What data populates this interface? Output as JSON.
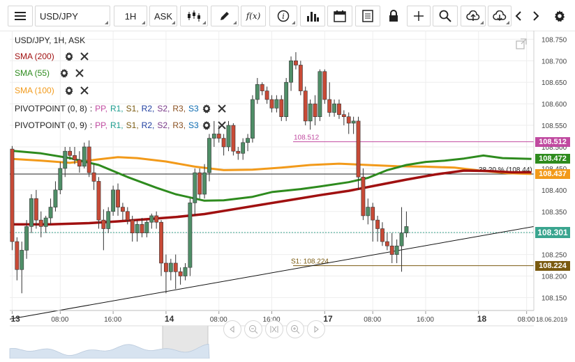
{
  "toolbar": {
    "symbol": "USD/JPY",
    "timeframe": "1H",
    "price_type": "ASK",
    "fx_label": "f(x)"
  },
  "legend": {
    "header": "USD/JPY, 1H, ASK",
    "sma200": "SMA (200)",
    "sma55": "SMA (55)",
    "sma100": "SMA (100)",
    "pivot1_name": "PIVOTPOINT (0, 8)",
    "pivot2_name": "PIVOTPOINT (0, 9)",
    "pivot_sep": ":",
    "pivot_items": [
      "PP,",
      "R1,",
      "S1,",
      "R2,",
      "S2,",
      "R3,",
      "S3"
    ],
    "colors": {
      "sma200": "#a01010",
      "sma55": "#2e8b1e",
      "sma100": "#f29a1a",
      "pivot": [
        "#c04aa0",
        "#1b9c8e",
        "#7a5a10",
        "#1e3ea0",
        "#7a3a8a",
        "#8a5020",
        "#0a6ab0"
      ]
    }
  },
  "chart_data": {
    "type": "candlestick",
    "symbol": "USD/JPY",
    "timeframe": "1H",
    "ylim": [
      108.12,
      108.77
    ],
    "y_ticks": [
      "108.750",
      "108.700",
      "108.650",
      "108.600",
      "108.550",
      "108.500",
      "108.450",
      "108.400",
      "108.350",
      "108.300",
      "108.250",
      "108.200",
      "108.150"
    ],
    "x_ticks": [
      {
        "label": "13",
        "bold": true,
        "i": 0
      },
      {
        "label": "08:00",
        "bold": false,
        "i": 10
      },
      {
        "label": "16:00",
        "bold": false,
        "i": 21
      },
      {
        "label": "14",
        "bold": true,
        "i": 32
      },
      {
        "label": "08:00",
        "bold": false,
        "i": 43
      },
      {
        "label": "16:00",
        "bold": false,
        "i": 54
      },
      {
        "label": "17",
        "bold": true,
        "i": 65
      },
      {
        "label": "08:00",
        "bold": false,
        "i": 75
      },
      {
        "label": "16:00",
        "bold": false,
        "i": 86
      },
      {
        "label": "18",
        "bold": true,
        "i": 97
      },
      {
        "label": "08:00",
        "bold": false,
        "i": 107
      }
    ],
    "date_label": "18.06.2019",
    "candles": [
      [
        108.495,
        108.502,
        108.26,
        108.28
      ],
      [
        108.28,
        108.29,
        108.19,
        108.215
      ],
      [
        108.215,
        108.28,
        108.16,
        108.26
      ],
      [
        108.26,
        108.33,
        108.24,
        108.315
      ],
      [
        108.315,
        108.39,
        108.3,
        108.38
      ],
      [
        108.38,
        108.4,
        108.31,
        108.33
      ],
      [
        108.33,
        108.35,
        108.29,
        108.315
      ],
      [
        108.315,
        108.34,
        108.3,
        108.335
      ],
      [
        108.335,
        108.38,
        108.32,
        108.36
      ],
      [
        108.36,
        108.42,
        108.35,
        108.4
      ],
      [
        108.4,
        108.465,
        108.39,
        108.45
      ],
      [
        108.45,
        108.5,
        108.43,
        108.49
      ],
      [
        108.49,
        108.5,
        108.47,
        108.48
      ],
      [
        108.48,
        108.5,
        108.46,
        108.47
      ],
      [
        108.47,
        108.49,
        108.44,
        108.455
      ],
      [
        108.455,
        108.51,
        108.45,
        108.5
      ],
      [
        108.5,
        108.515,
        108.43,
        108.44
      ],
      [
        108.44,
        108.46,
        108.4,
        108.42
      ],
      [
        108.42,
        108.43,
        108.31,
        108.33
      ],
      [
        108.33,
        108.355,
        108.26,
        108.31
      ],
      [
        108.31,
        108.36,
        108.3,
        108.35
      ],
      [
        108.35,
        108.41,
        108.34,
        108.4
      ],
      [
        108.4,
        108.415,
        108.34,
        108.36
      ],
      [
        108.36,
        108.37,
        108.33,
        108.35
      ],
      [
        108.35,
        108.36,
        108.32,
        108.33
      ],
      [
        108.33,
        108.34,
        108.28,
        108.3
      ],
      [
        108.3,
        108.33,
        108.28,
        108.32
      ],
      [
        108.32,
        108.335,
        108.29,
        108.3
      ],
      [
        108.3,
        108.33,
        108.29,
        108.325
      ],
      [
        108.325,
        108.345,
        108.31,
        108.34
      ],
      [
        108.34,
        108.35,
        108.31,
        108.325
      ],
      [
        108.325,
        108.33,
        108.2,
        108.23
      ],
      [
        108.23,
        108.25,
        108.16,
        108.21
      ],
      [
        108.21,
        108.24,
        108.19,
        108.23
      ],
      [
        108.23,
        108.25,
        108.17,
        108.21
      ],
      [
        108.21,
        108.22,
        108.18,
        108.2
      ],
      [
        108.2,
        108.23,
        108.19,
        108.22
      ],
      [
        108.22,
        108.38,
        108.2,
        108.37
      ],
      [
        108.37,
        108.45,
        108.34,
        108.44
      ],
      [
        108.44,
        108.45,
        108.38,
        108.39
      ],
      [
        108.39,
        108.46,
        108.38,
        108.44
      ],
      [
        108.44,
        108.53,
        108.42,
        108.52
      ],
      [
        108.52,
        108.56,
        108.5,
        108.53
      ],
      [
        108.53,
        108.55,
        108.51,
        108.52
      ],
      [
        108.52,
        108.53,
        108.48,
        108.5
      ],
      [
        108.5,
        108.56,
        108.49,
        108.55
      ],
      [
        108.55,
        108.555,
        108.48,
        108.49
      ],
      [
        108.49,
        108.5,
        108.47,
        108.485
      ],
      [
        108.485,
        108.52,
        108.47,
        108.51
      ],
      [
        108.51,
        108.53,
        108.49,
        108.52
      ],
      [
        108.52,
        108.62,
        108.51,
        108.61
      ],
      [
        108.61,
        108.66,
        108.6,
        108.645
      ],
      [
        108.645,
        108.65,
        108.62,
        108.63
      ],
      [
        108.63,
        108.64,
        108.6,
        108.61
      ],
      [
        108.61,
        108.62,
        108.58,
        108.59
      ],
      [
        108.59,
        108.62,
        108.58,
        108.61
      ],
      [
        108.61,
        108.62,
        108.56,
        108.57
      ],
      [
        108.57,
        108.66,
        108.56,
        108.65
      ],
      [
        108.65,
        108.71,
        108.63,
        108.7
      ],
      [
        108.7,
        108.72,
        108.68,
        108.69
      ],
      [
        108.69,
        108.7,
        108.62,
        108.63
      ],
      [
        108.63,
        108.64,
        108.55,
        108.56
      ],
      [
        108.56,
        108.61,
        108.54,
        108.6
      ],
      [
        108.6,
        108.62,
        108.55,
        108.57
      ],
      [
        108.57,
        108.68,
        108.56,
        108.675
      ],
      [
        108.675,
        108.68,
        108.6,
        108.61
      ],
      [
        108.61,
        108.65,
        108.57,
        108.58
      ],
      [
        108.58,
        108.61,
        108.57,
        108.6
      ],
      [
        108.6,
        108.61,
        108.565,
        108.575
      ],
      [
        108.575,
        108.585,
        108.55,
        108.57
      ],
      [
        108.57,
        108.58,
        108.53,
        108.555
      ],
      [
        108.555,
        108.57,
        108.53,
        108.56
      ],
      [
        108.56,
        108.57,
        108.4,
        108.43
      ],
      [
        108.43,
        108.45,
        108.33,
        108.34
      ],
      [
        108.34,
        108.38,
        108.32,
        108.36
      ],
      [
        108.36,
        108.37,
        108.28,
        108.33
      ],
      [
        108.33,
        108.34,
        108.28,
        108.31
      ],
      [
        108.31,
        108.325,
        108.27,
        108.28
      ],
      [
        108.28,
        108.3,
        108.26,
        108.27
      ],
      [
        108.27,
        108.3,
        108.23,
        108.25
      ],
      [
        108.25,
        108.285,
        108.23,
        108.27
      ],
      [
        108.27,
        108.36,
        108.21,
        108.3
      ],
      [
        108.3,
        108.35,
        108.29,
        108.315
      ]
    ],
    "sma55": [
      [
        0,
        108.491
      ],
      [
        6,
        108.485
      ],
      [
        12,
        108.474
      ],
      [
        18,
        108.458
      ],
      [
        24,
        108.43
      ],
      [
        30,
        108.405
      ],
      [
        34,
        108.39
      ],
      [
        40,
        108.375
      ],
      [
        44,
        108.376
      ],
      [
        50,
        108.384
      ],
      [
        54,
        108.395
      ],
      [
        60,
        108.402
      ],
      [
        64,
        108.408
      ],
      [
        70,
        108.418
      ],
      [
        74,
        108.428
      ],
      [
        78,
        108.446
      ],
      [
        82,
        108.458
      ],
      [
        86,
        108.465
      ],
      [
        90,
        108.468
      ],
      [
        94,
        108.473
      ],
      [
        98,
        108.48
      ],
      [
        102,
        108.474
      ],
      [
        108,
        108.472
      ]
    ],
    "sma100": [
      [
        0,
        108.472
      ],
      [
        6,
        108.468
      ],
      [
        12,
        108.463
      ],
      [
        18,
        108.471
      ],
      [
        22,
        108.476
      ],
      [
        26,
        108.474
      ],
      [
        32,
        108.466
      ],
      [
        38,
        108.454
      ],
      [
        44,
        108.446
      ],
      [
        50,
        108.447
      ],
      [
        56,
        108.452
      ],
      [
        62,
        108.458
      ],
      [
        68,
        108.461
      ],
      [
        74,
        108.458
      ],
      [
        80,
        108.455
      ],
      [
        86,
        108.454
      ],
      [
        92,
        108.452
      ],
      [
        98,
        108.444
      ],
      [
        103,
        108.439
      ],
      [
        108,
        108.437
      ]
    ],
    "sma200": [
      [
        0,
        108.32
      ],
      [
        8,
        108.32
      ],
      [
        16,
        108.323
      ],
      [
        22,
        108.327
      ],
      [
        28,
        108.332
      ],
      [
        34,
        108.337
      ],
      [
        40,
        108.344
      ],
      [
        46,
        108.355
      ],
      [
        52,
        108.366
      ],
      [
        58,
        108.377
      ],
      [
        64,
        108.388
      ],
      [
        70,
        108.398
      ],
      [
        76,
        108.411
      ],
      [
        82,
        108.424
      ],
      [
        88,
        108.436
      ],
      [
        94,
        108.445
      ],
      [
        99,
        108.444
      ],
      [
        104,
        108.441
      ],
      [
        108,
        108.441
      ]
    ],
    "trendline": [
      [
        108.1,
        0
      ],
      [
        108.315,
        109
      ]
    ],
    "fib_line": {
      "value": 108.437,
      "label": "38.20 % (108.44)"
    },
    "pivot_levels": [
      {
        "label": "108.512",
        "value": 108.512,
        "color": "#c04aa0"
      },
      {
        "label": "S1: 108.224",
        "value": 108.224,
        "color": "#7a5a10"
      }
    ],
    "price_labels": [
      {
        "text": "108.512",
        "value": 108.512,
        "bg": "#c04aa0"
      },
      {
        "text": "108.472",
        "value": 108.472,
        "bg": "#2e8b1e"
      },
      {
        "text": "108.437",
        "value": 108.437,
        "bg": "#f29a1a"
      },
      {
        "text": "108.301",
        "value": 108.301,
        "bg": "#3aa58f"
      },
      {
        "text": "108.224",
        "value": 108.224,
        "bg": "#7a5a10"
      }
    ],
    "last_price": 108.301
  }
}
